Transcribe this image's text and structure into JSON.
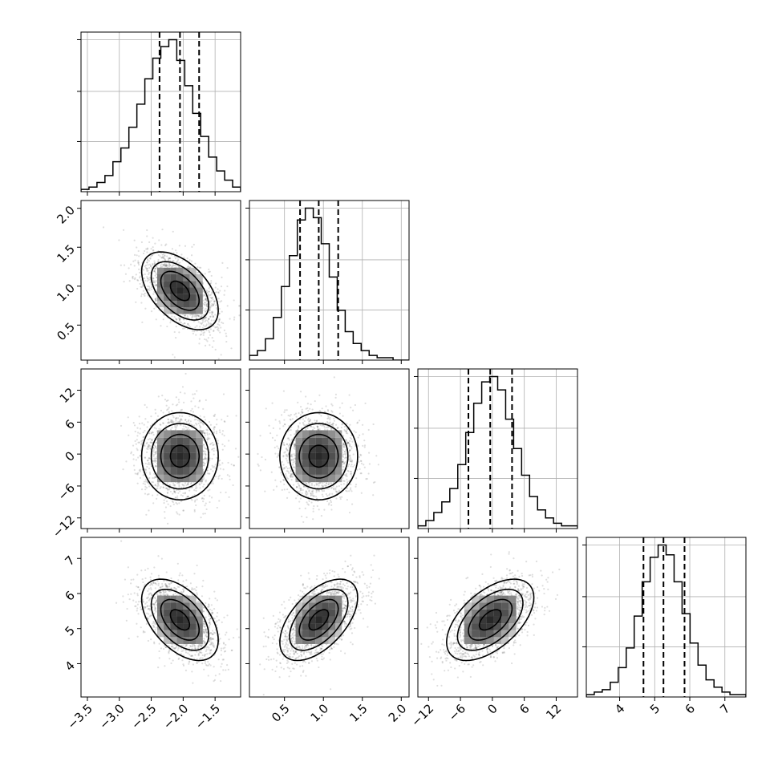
{
  "chart_data": {
    "type": "corner",
    "dimensions": 4,
    "variables": [
      {
        "index": 0,
        "range": [
          -3.6,
          -1.1
        ],
        "ticks": [
          -3.5,
          -3.0,
          -2.5,
          -2.0,
          -1.5
        ],
        "tick_labels": [
          "−3.5",
          "−3.0",
          "−2.5",
          "−2.0",
          "−1.5"
        ],
        "quantiles": [
          -2.37,
          -2.05,
          -1.75
        ],
        "mean": -2.05,
        "sd": 0.3
      },
      {
        "index": 1,
        "range": [
          0.05,
          2.1
        ],
        "ticks": [
          0.5,
          1.0,
          1.5,
          2.0
        ],
        "tick_labels": [
          "0.5",
          "1.0",
          "1.5",
          "2.0"
        ],
        "quantiles": [
          0.7,
          0.94,
          1.19
        ],
        "mean": 0.94,
        "sd": 0.25
      },
      {
        "index": 2,
        "range": [
          -14,
          16
        ],
        "ticks": [
          -12,
          -6,
          0,
          6,
          12
        ],
        "tick_labels": [
          "−12",
          "−6",
          "0",
          "6",
          "12"
        ],
        "quantiles": [
          -4.5,
          -0.4,
          3.7
        ],
        "mean": -0.4,
        "sd": 4.1
      },
      {
        "index": 3,
        "range": [
          3.05,
          7.6
        ],
        "ticks": [
          4,
          5,
          6,
          7
        ],
        "tick_labels": [
          "4",
          "5",
          "6",
          "7"
        ],
        "quantiles": [
          4.68,
          5.25,
          5.85
        ],
        "mean": 5.25,
        "sd": 0.58
      }
    ],
    "correlations": [
      [
        1,
        -0.5,
        0.0,
        -0.5
      ],
      [
        -0.5,
        1,
        0.0,
        0.55
      ],
      [
        0.0,
        0.0,
        1,
        0.55
      ],
      [
        -0.5,
        0.55,
        0.55,
        1
      ]
    ],
    "histograms": [
      {
        "var": 0,
        "bin_edges": [
          -3.6,
          -3.475,
          -3.35,
          -3.225,
          -3.1,
          -2.975,
          -2.85,
          -2.725,
          -2.6,
          -2.475,
          -2.35,
          -2.225,
          -2.1,
          -1.975,
          -1.85,
          -1.725,
          -1.6,
          -1.475,
          -1.35,
          -1.225,
          -1.1
        ],
        "counts": [
          1,
          2,
          4,
          7,
          13,
          19,
          28,
          38,
          49,
          58,
          63,
          66,
          57,
          46,
          34,
          24,
          15,
          9,
          5,
          2
        ]
      },
      {
        "var": 1,
        "bin_edges": [
          0.05,
          0.1525,
          0.255,
          0.3575,
          0.46,
          0.5625,
          0.665,
          0.7675,
          0.87,
          0.9725,
          1.075,
          1.1775,
          1.28,
          1.3825,
          1.485,
          1.5875,
          1.69,
          1.7925,
          1.895,
          1.9975,
          2.1
        ],
        "counts": [
          2,
          4,
          9,
          18,
          31,
          44,
          59,
          64,
          60,
          49,
          35,
          21,
          12,
          7,
          4,
          2,
          1,
          1,
          0,
          0
        ]
      },
      {
        "var": 2,
        "bin_edges": [
          -14.0,
          -12.5,
          -11.0,
          -9.5,
          -8.0,
          -6.5,
          -5.0,
          -3.5,
          -2.0,
          -0.5,
          1.0,
          2.5,
          4.0,
          5.5,
          7.0,
          8.5,
          10.0,
          11.5,
          13.0,
          14.5,
          16.0
        ],
        "counts": [
          1,
          3,
          6,
          10,
          15,
          24,
          36,
          47,
          55,
          57,
          52,
          41,
          30,
          20,
          12,
          7,
          4,
          2,
          1,
          1
        ]
      },
      {
        "var": 3,
        "bin_edges": [
          3.05,
          3.2775,
          3.505,
          3.7325,
          3.96,
          4.1875,
          4.415,
          4.6425,
          4.87,
          5.0975,
          5.325,
          5.5525,
          5.78,
          6.0075,
          6.235,
          6.4625,
          6.69,
          6.9175,
          7.145,
          7.3725,
          7.6
        ],
        "counts": [
          1,
          2,
          3,
          6,
          12,
          20,
          33,
          47,
          57,
          62,
          58,
          47,
          34,
          22,
          13,
          7,
          4,
          2,
          1,
          1
        ]
      }
    ],
    "grid": true,
    "points_color": "#000000",
    "line_color": "#000000"
  }
}
